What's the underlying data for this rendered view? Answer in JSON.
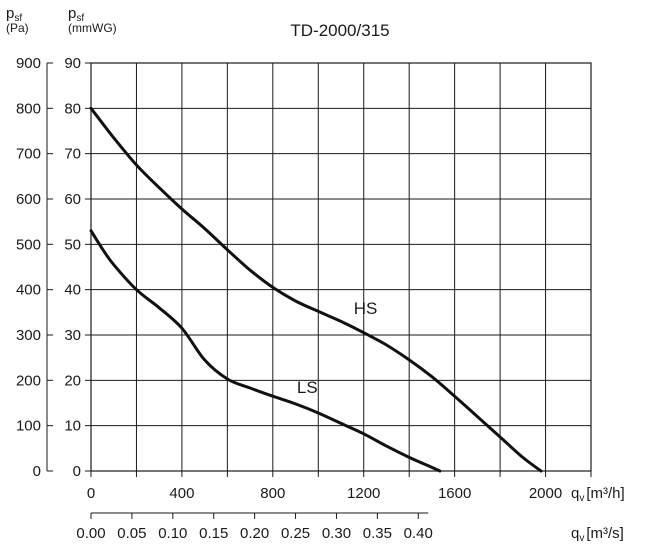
{
  "chart_data": {
    "type": "line",
    "title": "TD-2000/315",
    "y_left_label": {
      "main": "p",
      "sub": "sf",
      "unit": "(Pa)"
    },
    "y_right_label": {
      "main": "p",
      "sub": "sf",
      "unit": "(mmWG)"
    },
    "x_label_primary": {
      "main": "q",
      "sub": "v",
      "unit": "[m³/h]"
    },
    "x_label_secondary": {
      "main": "q",
      "sub": "v",
      "unit": "[m³/s]"
    },
    "xlim": [
      0,
      2200
    ],
    "ylim": [
      0,
      900
    ],
    "grid": true,
    "x_ticks_primary": [
      "0",
      "400",
      "800",
      "1200",
      "1600",
      "2000"
    ],
    "x_ticks_secondary": [
      "0.00",
      "0.05",
      "0.10",
      "0.15",
      "0.20",
      "0.25",
      "0.30",
      "0.35",
      "0.40"
    ],
    "y_ticks_left": [
      "0",
      "100",
      "200",
      "300",
      "400",
      "500",
      "600",
      "700",
      "800",
      "900"
    ],
    "y_ticks_right": [
      "0",
      "10",
      "20",
      "30",
      "40",
      "50",
      "60",
      "70",
      "80",
      "90"
    ],
    "series": [
      {
        "name": "HS",
        "x": [
          0,
          100,
          200,
          300,
          400,
          500,
          600,
          700,
          800,
          900,
          1000,
          1100,
          1200,
          1300,
          1400,
          1500,
          1600,
          1700,
          1800,
          1900,
          1980
        ],
        "y": [
          800,
          735,
          675,
          625,
          578,
          535,
          488,
          443,
          405,
          375,
          352,
          330,
          305,
          278,
          245,
          208,
          165,
          120,
          75,
          30,
          0
        ]
      },
      {
        "name": "LS",
        "x": [
          0,
          50,
          100,
          200,
          300,
          400,
          500,
          600,
          700,
          800,
          900,
          1000,
          1100,
          1200,
          1300,
          1400,
          1500,
          1535
        ],
        "y": [
          530,
          490,
          455,
          400,
          360,
          315,
          245,
          203,
          183,
          165,
          148,
          128,
          105,
          82,
          55,
          30,
          8,
          0
        ]
      }
    ]
  }
}
